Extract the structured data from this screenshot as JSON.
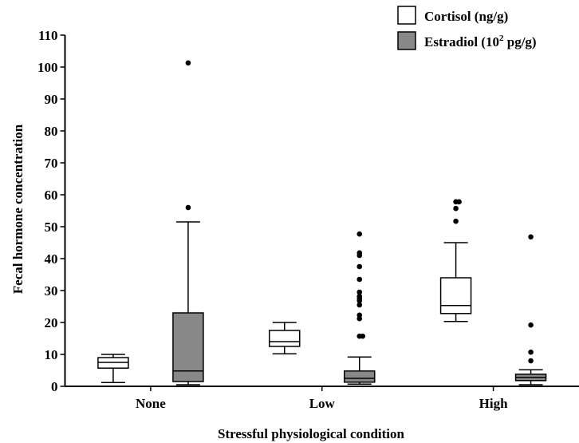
{
  "chart_data": {
    "type": "boxplot",
    "title": "",
    "xlabel": "Stressful physiological condition",
    "ylabel": "Fecal hormone concentration",
    "ylim": [
      0,
      110
    ],
    "yticks": [
      0,
      10,
      20,
      30,
      40,
      50,
      60,
      70,
      80,
      90,
      100,
      110
    ],
    "categories": [
      "None",
      "Low",
      "High"
    ],
    "legend": {
      "placement": "top-right",
      "entries": [
        {
          "label": "Cortisol (ng/g)",
          "fill": "#ffffff"
        },
        {
          "label_main": "Estradiol (10",
          "label_sup": "2",
          "label_tail": " pg/g)",
          "fill": "#888888"
        }
      ]
    },
    "series": [
      {
        "name": "Cortisol (ng/g)",
        "color": "#ffffff",
        "boxes": [
          {
            "category": "None",
            "whisker_low": 1.2,
            "q1": 5.7,
            "median": 7.5,
            "q3": 9.0,
            "whisker_high": 10.0,
            "outliers": []
          },
          {
            "category": "Low",
            "whisker_low": 10.2,
            "q1": 12.5,
            "median": 14.0,
            "q3": 17.5,
            "whisker_high": 20.0,
            "outliers": []
          },
          {
            "category": "High",
            "whisker_low": 20.3,
            "q1": 22.8,
            "median": 25.3,
            "q3": 34.0,
            "whisker_high": 45.0,
            "outliers": [
              51.7,
              55.7,
              57.8,
              57.8
            ]
          }
        ]
      },
      {
        "name": "Estradiol (10² pg/g)",
        "color": "#888888",
        "boxes": [
          {
            "category": "None",
            "whisker_low": 0.5,
            "q1": 1.5,
            "median": 4.8,
            "q3": 23.0,
            "whisker_high": 51.5,
            "outliers": [
              56.0,
              101.3
            ]
          },
          {
            "category": "Low",
            "whisker_low": 0.7,
            "q1": 1.3,
            "median": 2.5,
            "q3": 4.8,
            "whisker_high": 9.2,
            "outliers": [
              15.7,
              15.7,
              21.2,
              22.3,
              25.5,
              26.8,
              27.5,
              28.2,
              29.5,
              33.5,
              37.5,
              41.0,
              41.8,
              47.7
            ]
          },
          {
            "category": "High",
            "whisker_low": 0.5,
            "q1": 1.8,
            "median": 2.8,
            "q3": 3.8,
            "whisker_high": 5.2,
            "outliers": [
              8.0,
              10.7,
              19.2,
              46.8
            ]
          }
        ]
      }
    ]
  }
}
